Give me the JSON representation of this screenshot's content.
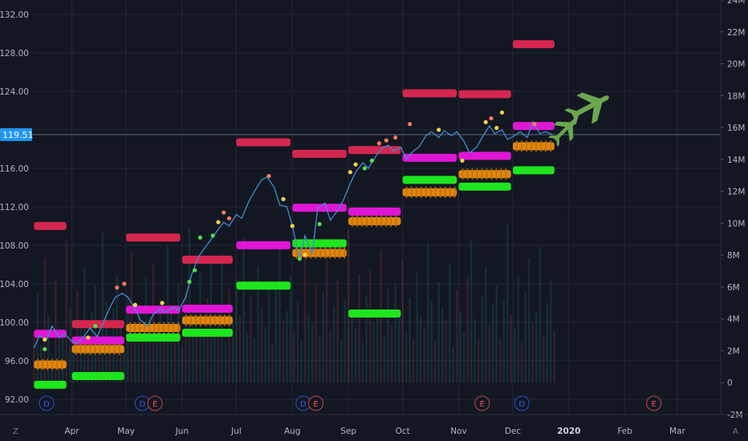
{
  "chart_data": {
    "type": "line",
    "last_price": "119.51",
    "colors": {
      "background": "#131722",
      "grid": "#222836",
      "price_line": "#3e8ed0",
      "resistance": "#d5264f",
      "pivot": "#e016d6",
      "support_orange": "#e0860f",
      "support_green": "#1ee51e",
      "tick_text": "#b2b5be",
      "price_badge": "#2196f3",
      "plane": "#6aa84f",
      "event_d": "#2962ff",
      "event_e": "#ef5350"
    },
    "y_axis": {
      "min": 90.4,
      "max": 133.5,
      "ticks": [
        {
          "v": 92,
          "label": "92.00"
        },
        {
          "v": 96,
          "label": "96.00"
        },
        {
          "v": 100,
          "label": "100.00"
        },
        {
          "v": 104,
          "label": "104.00"
        },
        {
          "v": 108,
          "label": "108.00"
        },
        {
          "v": 112,
          "label": "112.00"
        },
        {
          "v": 116,
          "label": "116.00"
        },
        {
          "v": 120,
          "label": ""
        },
        {
          "v": 124,
          "label": "124.00"
        },
        {
          "v": 128,
          "label": "128.00"
        },
        {
          "v": 132,
          "label": "132.00"
        }
      ]
    },
    "volume_axis": {
      "min": -2,
      "max": 24,
      "ticks": [
        {
          "v": 24,
          "label": "24M"
        },
        {
          "v": 22,
          "label": "22M"
        },
        {
          "v": 20,
          "label": "20M"
        },
        {
          "v": 18,
          "label": "18M"
        },
        {
          "v": 16,
          "label": "16M"
        },
        {
          "v": 14,
          "label": "14M"
        },
        {
          "v": 12,
          "label": "12M"
        },
        {
          "v": 10,
          "label": "10M"
        },
        {
          "v": 8,
          "label": "8M"
        },
        {
          "v": 6,
          "label": "6M"
        },
        {
          "v": 4,
          "label": "4M"
        },
        {
          "v": 2,
          "label": "2M"
        },
        {
          "v": 0,
          "label": "0"
        },
        {
          "v": -2,
          "label": "-2M"
        }
      ]
    },
    "x_axis": {
      "min": "2019-03-10",
      "max": "2020-03-25",
      "ticks": [
        {
          "date": "2019-04-01",
          "label": "Apr"
        },
        {
          "date": "2019-05-01",
          "label": "May"
        },
        {
          "date": "2019-06-01",
          "label": "Jun"
        },
        {
          "date": "2019-07-01",
          "label": "Jul"
        },
        {
          "date": "2019-08-01",
          "label": "Aug"
        },
        {
          "date": "2019-09-01",
          "label": "Sep"
        },
        {
          "date": "2019-10-01",
          "label": "Oct"
        },
        {
          "date": "2019-11-01",
          "label": "Nov"
        },
        {
          "date": "2019-12-01",
          "label": "Dec"
        },
        {
          "date": "2020-01-01",
          "label": "2020"
        },
        {
          "date": "2020-02-01",
          "label": "Feb"
        },
        {
          "date": "2020-03-01",
          "label": "Mar"
        }
      ]
    },
    "price_series": [
      [
        "2019-03-11",
        97.3
      ],
      [
        "2019-03-14",
        98.6
      ],
      [
        "2019-03-18",
        98.2
      ],
      [
        "2019-03-21",
        99.6
      ],
      [
        "2019-03-25",
        98.4
      ],
      [
        "2019-03-28",
        98.8
      ],
      [
        "2019-04-01",
        98.0
      ],
      [
        "2019-04-04",
        97.8
      ],
      [
        "2019-04-08",
        98.6
      ],
      [
        "2019-04-11",
        99.4
      ],
      [
        "2019-04-15",
        98.5
      ],
      [
        "2019-04-18",
        99.8
      ],
      [
        "2019-04-22",
        101.5
      ],
      [
        "2019-04-25",
        102.6
      ],
      [
        "2019-04-29",
        103.0
      ],
      [
        "2019-05-02",
        102.6
      ],
      [
        "2019-05-06",
        101.4
      ],
      [
        "2019-05-09",
        100.2
      ],
      [
        "2019-05-13",
        99.6
      ],
      [
        "2019-05-16",
        100.8
      ],
      [
        "2019-05-20",
        101.4
      ],
      [
        "2019-05-23",
        101.0
      ],
      [
        "2019-05-27",
        101.6
      ],
      [
        "2019-05-30",
        101.2
      ],
      [
        "2019-06-03",
        102.6
      ],
      [
        "2019-06-06",
        104.8
      ],
      [
        "2019-06-10",
        106.8
      ],
      [
        "2019-06-13",
        107.6
      ],
      [
        "2019-06-17",
        108.6
      ],
      [
        "2019-06-20",
        109.4
      ],
      [
        "2019-06-24",
        110.4
      ],
      [
        "2019-06-27",
        110.0
      ],
      [
        "2019-07-01",
        111.2
      ],
      [
        "2019-07-04",
        110.8
      ],
      [
        "2019-07-08",
        112.6
      ],
      [
        "2019-07-11",
        113.6
      ],
      [
        "2019-07-15",
        114.8
      ],
      [
        "2019-07-18",
        115.1
      ],
      [
        "2019-07-22",
        114.0
      ],
      [
        "2019-07-25",
        112.2
      ],
      [
        "2019-07-29",
        112.0
      ],
      [
        "2019-08-01",
        110.0
      ],
      [
        "2019-08-05",
        106.6
      ],
      [
        "2019-08-08",
        109.0
      ],
      [
        "2019-08-12",
        107.2
      ],
      [
        "2019-08-15",
        111.8
      ],
      [
        "2019-08-19",
        112.4
      ],
      [
        "2019-08-22",
        110.6
      ],
      [
        "2019-08-26",
        111.6
      ],
      [
        "2019-08-29",
        112.6
      ],
      [
        "2019-09-02",
        114.4
      ],
      [
        "2019-09-05",
        115.6
      ],
      [
        "2019-09-09",
        116.6
      ],
      [
        "2019-09-12",
        116.0
      ],
      [
        "2019-09-16",
        117.2
      ],
      [
        "2019-09-19",
        118.0
      ],
      [
        "2019-09-23",
        118.4
      ],
      [
        "2019-09-26",
        117.8
      ],
      [
        "2019-09-30",
        118.2
      ],
      [
        "2019-10-03",
        117.0
      ],
      [
        "2019-10-07",
        117.8
      ],
      [
        "2019-10-10",
        118.2
      ],
      [
        "2019-10-14",
        119.4
      ],
      [
        "2019-10-17",
        119.8
      ],
      [
        "2019-10-21",
        119.2
      ],
      [
        "2019-10-24",
        119.9
      ],
      [
        "2019-10-28",
        119.4
      ],
      [
        "2019-10-31",
        119.8
      ],
      [
        "2019-11-04",
        118.8
      ],
      [
        "2019-11-07",
        117.6
      ],
      [
        "2019-11-11",
        118.2
      ],
      [
        "2019-11-14",
        119.2
      ],
      [
        "2019-11-18",
        120.4
      ],
      [
        "2019-11-21",
        119.6
      ],
      [
        "2019-11-25",
        120.0
      ],
      [
        "2019-11-28",
        119.0
      ],
      [
        "2019-12-02",
        119.4
      ],
      [
        "2019-12-05",
        119.8
      ],
      [
        "2019-12-09",
        119.2
      ],
      [
        "2019-12-12",
        120.8
      ],
      [
        "2019-12-16",
        119.6
      ],
      [
        "2019-12-19",
        119.8
      ],
      [
        "2019-12-23",
        119.5
      ]
    ],
    "level_segments": [
      {
        "kind": "resistance",
        "start": "2019-03-11",
        "end": "2019-03-29",
        "y": 110.0
      },
      {
        "kind": "pivot",
        "start": "2019-03-11",
        "end": "2019-03-29",
        "y": 98.8
      },
      {
        "kind": "support_orange",
        "start": "2019-03-11",
        "end": "2019-03-29",
        "y": 95.6
      },
      {
        "kind": "support_green",
        "start": "2019-03-11",
        "end": "2019-03-29",
        "y": 93.5
      },
      {
        "kind": "resistance",
        "start": "2019-04-01",
        "end": "2019-04-30",
        "y": 99.8
      },
      {
        "kind": "pivot",
        "start": "2019-04-01",
        "end": "2019-04-30",
        "y": 98.1
      },
      {
        "kind": "support_orange",
        "start": "2019-04-01",
        "end": "2019-04-30",
        "y": 97.2
      },
      {
        "kind": "support_green",
        "start": "2019-04-01",
        "end": "2019-04-30",
        "y": 94.4
      },
      {
        "kind": "resistance",
        "start": "2019-05-01",
        "end": "2019-05-31",
        "y": 108.8
      },
      {
        "kind": "pivot",
        "start": "2019-05-01",
        "end": "2019-05-31",
        "y": 101.3
      },
      {
        "kind": "support_orange",
        "start": "2019-05-01",
        "end": "2019-05-31",
        "y": 99.4
      },
      {
        "kind": "support_green",
        "start": "2019-05-01",
        "end": "2019-05-31",
        "y": 98.4
      },
      {
        "kind": "resistance",
        "start": "2019-06-01",
        "end": "2019-06-29",
        "y": 106.5
      },
      {
        "kind": "pivot",
        "start": "2019-06-01",
        "end": "2019-06-29",
        "y": 101.4
      },
      {
        "kind": "support_orange",
        "start": "2019-06-01",
        "end": "2019-06-29",
        "y": 100.2
      },
      {
        "kind": "support_green",
        "start": "2019-06-01",
        "end": "2019-06-29",
        "y": 98.9
      },
      {
        "kind": "resistance",
        "start": "2019-07-01",
        "end": "2019-07-31",
        "y": 118.7
      },
      {
        "kind": "pivot",
        "start": "2019-07-01",
        "end": "2019-07-31",
        "y": 108.0
      },
      {
        "kind": "support_green",
        "start": "2019-07-01",
        "end": "2019-07-31",
        "y": 103.8
      },
      {
        "kind": "resistance",
        "start": "2019-08-01",
        "end": "2019-08-31",
        "y": 117.5
      },
      {
        "kind": "pivot",
        "start": "2019-08-01",
        "end": "2019-08-31",
        "y": 111.9
      },
      {
        "kind": "support_green",
        "start": "2019-08-01",
        "end": "2019-08-31",
        "y": 108.2
      },
      {
        "kind": "support_orange",
        "start": "2019-08-01",
        "end": "2019-08-31",
        "y": 107.2
      },
      {
        "kind": "resistance",
        "start": "2019-09-01",
        "end": "2019-09-30",
        "y": 117.9
      },
      {
        "kind": "pivot",
        "start": "2019-09-01",
        "end": "2019-09-30",
        "y": 111.5
      },
      {
        "kind": "support_orange",
        "start": "2019-09-01",
        "end": "2019-09-30",
        "y": 110.5
      },
      {
        "kind": "support_green",
        "start": "2019-09-01",
        "end": "2019-09-30",
        "y": 100.9
      },
      {
        "kind": "resistance",
        "start": "2019-10-01",
        "end": "2019-10-31",
        "y": 123.8
      },
      {
        "kind": "pivot",
        "start": "2019-10-01",
        "end": "2019-10-31",
        "y": 117.1
      },
      {
        "kind": "support_green",
        "start": "2019-10-01",
        "end": "2019-10-31",
        "y": 114.8
      },
      {
        "kind": "support_orange",
        "start": "2019-10-01",
        "end": "2019-10-31",
        "y": 113.5
      },
      {
        "kind": "resistance",
        "start": "2019-11-01",
        "end": "2019-11-30",
        "y": 123.7
      },
      {
        "kind": "pivot",
        "start": "2019-11-01",
        "end": "2019-11-30",
        "y": 117.3
      },
      {
        "kind": "support_orange",
        "start": "2019-11-01",
        "end": "2019-11-30",
        "y": 115.4
      },
      {
        "kind": "support_green",
        "start": "2019-11-01",
        "end": "2019-11-30",
        "y": 114.1
      },
      {
        "kind": "resistance",
        "start": "2019-12-01",
        "end": "2019-12-24",
        "y": 128.9
      },
      {
        "kind": "pivot",
        "start": "2019-12-01",
        "end": "2019-12-24",
        "y": 120.4
      },
      {
        "kind": "support_orange",
        "start": "2019-12-01",
        "end": "2019-12-24",
        "y": 118.3
      },
      {
        "kind": "support_green",
        "start": "2019-12-01",
        "end": "2019-12-24",
        "y": 115.8
      }
    ],
    "signal_dots": [
      {
        "date": "2019-03-17",
        "y": 98.2,
        "color": "#f0d44a"
      },
      {
        "date": "2019-03-17",
        "y": 97.2,
        "color": "#4de04d"
      },
      {
        "date": "2019-04-10",
        "y": 98.4,
        "color": "#f0d44a"
      },
      {
        "date": "2019-04-14",
        "y": 99.6,
        "color": "#4de04d"
      },
      {
        "date": "2019-04-26",
        "y": 103.6,
        "color": "#f07a5a"
      },
      {
        "date": "2019-04-30",
        "y": 104.0,
        "color": "#f07a5a"
      },
      {
        "date": "2019-05-06",
        "y": 101.8,
        "color": "#f0d44a"
      },
      {
        "date": "2019-05-21",
        "y": 102.0,
        "color": "#f0d44a"
      },
      {
        "date": "2019-06-05",
        "y": 104.2,
        "color": "#4de04d"
      },
      {
        "date": "2019-06-08",
        "y": 105.4,
        "color": "#4de04d"
      },
      {
        "date": "2019-06-11",
        "y": 108.8,
        "color": "#4de04d"
      },
      {
        "date": "2019-06-18",
        "y": 109.0,
        "color": "#4de04d"
      },
      {
        "date": "2019-06-21",
        "y": 110.4,
        "color": "#f0d44a"
      },
      {
        "date": "2019-06-24",
        "y": 111.4,
        "color": "#f07a5a"
      },
      {
        "date": "2019-06-27",
        "y": 110.8,
        "color": "#f07a5a"
      },
      {
        "date": "2019-07-19",
        "y": 115.2,
        "color": "#f07a5a"
      },
      {
        "date": "2019-07-27",
        "y": 112.8,
        "color": "#f0d44a"
      },
      {
        "date": "2019-08-01",
        "y": 110.0,
        "color": "#f0d44a"
      },
      {
        "date": "2019-08-05",
        "y": 106.6,
        "color": "#4de04d"
      },
      {
        "date": "2019-08-08",
        "y": 107.0,
        "color": "#f0d44a"
      },
      {
        "date": "2019-08-16",
        "y": 110.2,
        "color": "#4de04d"
      },
      {
        "date": "2019-09-02",
        "y": 115.6,
        "color": "#f0d44a"
      },
      {
        "date": "2019-09-05",
        "y": 116.4,
        "color": "#f0d44a"
      },
      {
        "date": "2019-09-10",
        "y": 116.0,
        "color": "#4de04d"
      },
      {
        "date": "2019-09-14",
        "y": 116.8,
        "color": "#4de04d"
      },
      {
        "date": "2019-09-18",
        "y": 118.6,
        "color": "#f07a5a"
      },
      {
        "date": "2019-09-22",
        "y": 118.9,
        "color": "#f07a5a"
      },
      {
        "date": "2019-09-27",
        "y": 119.2,
        "color": "#f07a5a"
      },
      {
        "date": "2019-10-05",
        "y": 120.6,
        "color": "#f07a5a"
      },
      {
        "date": "2019-10-21",
        "y": 120.0,
        "color": "#f0d44a"
      },
      {
        "date": "2019-11-03",
        "y": 116.8,
        "color": "#f0d44a"
      },
      {
        "date": "2019-11-16",
        "y": 120.8,
        "color": "#f0d44a"
      },
      {
        "date": "2019-11-19",
        "y": 121.2,
        "color": "#f07a5a"
      },
      {
        "date": "2019-11-22",
        "y": 120.2,
        "color": "#f0d44a"
      },
      {
        "date": "2019-11-25",
        "y": 121.8,
        "color": "#f0d44a"
      },
      {
        "date": "2019-12-13",
        "y": 120.6,
        "color": "#f07a5a"
      }
    ],
    "volume_bars": {
      "start": "2019-03-11",
      "every_days": 2,
      "values": [
        3.1,
        5.6,
        2.4,
        7.8,
        4.2,
        1.8,
        6.4,
        3.5,
        2.9,
        8.9,
        4.6,
        2.2,
        5.8,
        3.9,
        7.2,
        2.6,
        4.4,
        6.1,
        3.2,
        9.4,
        5.1,
        2.8,
        4.7,
        6.8,
        3.6,
        2.1,
        5.5,
        8.2,
        3.8,
        4.9,
        2.5,
        6.6,
        4.1,
        7.5,
        3.3,
        5.2,
        2.7,
        8.6,
        4.8,
        3.1,
        6.2,
        2.3,
        5.7,
        9.8,
        4.4,
        3.6,
        6.9,
        2.9,
        5.3,
        7.7,
        3.4,
        4.6,
        8.1,
        2.6,
        5.9,
        3.8,
        6.5,
        4.2,
        9.1,
        3.1,
        5.4,
        2.8,
        7.3,
        4.7,
        3.5,
        6.3,
        2.4,
        5.8,
        8.8,
        3.9,
        4.5,
        6.7,
        3.2,
        5.1,
        2.6,
        7.9,
        4.3,
        3.7,
        6.1,
        2.9,
        5.6,
        8.4,
        3.3,
        4.8,
        6.4,
        2.7,
        5.2,
        9.6,
        4.1,
        3.4,
        6.8,
        2.5,
        5.5,
        7.1,
        3.8,
        4.6,
        8.3,
        2.9,
        5.9,
        3.6,
        6.2,
        4.4,
        7.6,
        3.1,
        5.3,
        2.8,
        6.9,
        4.2,
        3.5,
        8.7,
        5.1,
        2.6,
        6.3,
        4.7,
        3.9,
        7.4,
        2.3,
        5.8,
        4.5,
        3.2,
        6.6,
        8.9,
        4.0,
        2.7,
        5.4,
        7.2,
        3.6,
        4.9,
        6.1,
        2.8,
        5.2,
        9.9,
        4.3,
        3.4,
        6.7,
        2.6,
        5.6,
        7.8,
        3.7,
        4.4,
        8.5,
        2.9,
        5.0,
        6.4,
        3.3,
        4.8,
        7.0,
        2.5,
        5.7,
        3.9,
        6.2,
        4.1,
        8.0,
        3.0,
        5.5,
        2.7,
        6.8,
        4.6,
        3.8,
        7.5,
        5.3
      ]
    },
    "event_markers": [
      {
        "date": "2019-03-18",
        "label": "D",
        "kind": "event_d"
      },
      {
        "date": "2019-05-10",
        "label": "D",
        "kind": "event_d"
      },
      {
        "date": "2019-05-17",
        "label": "E",
        "kind": "event_e"
      },
      {
        "date": "2019-08-07",
        "label": "D",
        "kind": "event_d"
      },
      {
        "date": "2019-08-14",
        "label": "E",
        "kind": "event_e"
      },
      {
        "date": "2019-11-14",
        "label": "E",
        "kind": "event_e"
      },
      {
        "date": "2019-12-06",
        "label": "D",
        "kind": "event_d"
      },
      {
        "date": "2020-02-17",
        "label": "E",
        "kind": "event_e"
      }
    ],
    "corner_labels": {
      "left": "Z",
      "right": "A"
    }
  }
}
